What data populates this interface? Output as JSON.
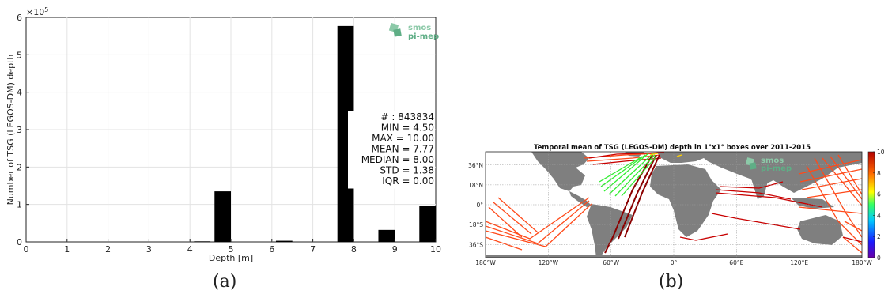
{
  "chart_data": [
    {
      "type": "bar",
      "xlabel": "Depth [m]",
      "ylabel": "Number of TSG (LEGOS-DM) depth",
      "y_multiplier_label": "×10",
      "y_multiplier_exp": "5",
      "xlim": [
        0,
        10
      ],
      "ylim": [
        0,
        600000
      ],
      "x_ticks": [
        "0",
        "1",
        "2",
        "3",
        "4",
        "5",
        "6",
        "7",
        "8",
        "9",
        "10"
      ],
      "y_ticks": [
        "0",
        "1",
        "2",
        "3",
        "4",
        "5",
        "6"
      ],
      "bar_width": 0.4,
      "bars": [
        {
          "x": 4.3,
          "value": 1500
        },
        {
          "x": 4.8,
          "value": 135000
        },
        {
          "x": 6.3,
          "value": 3000
        },
        {
          "x": 7.8,
          "value": 577000
        },
        {
          "x": 8.8,
          "value": 32000
        },
        {
          "x": 9.8,
          "value": 96000
        }
      ],
      "stats": [
        "# : 843834",
        "MIN = 4.50",
        "MAX =  10.00",
        "MEAN = 7.77",
        "MEDIAN = 8.00",
        "STD = 1.38",
        "IQR = 0.00"
      ],
      "logo": {
        "line1": "smos",
        "line2": "pi-mep"
      },
      "grid": true
    },
    {
      "type": "heatmap",
      "title": "Temporal mean of TSG (LEGOS-DM) depth in 1°x1° boxes over 2011-2015",
      "lon_ticks": [
        "180°W",
        "120°W",
        "60°W",
        "0°",
        "60°E",
        "120°E",
        "180°W"
      ],
      "lat_ticks": [
        "36°N",
        "18°N",
        "0°",
        "18°S",
        "36°S"
      ],
      "colorbar": {
        "min": 0,
        "max": 10,
        "ticks": [
          "0",
          "2",
          "4",
          "6",
          "8",
          "10"
        ]
      },
      "logo": {
        "line1": "smos",
        "line2": "pi-mep"
      },
      "grid": true
    }
  ],
  "captions": {
    "a": "(a)",
    "b": "(b)"
  }
}
